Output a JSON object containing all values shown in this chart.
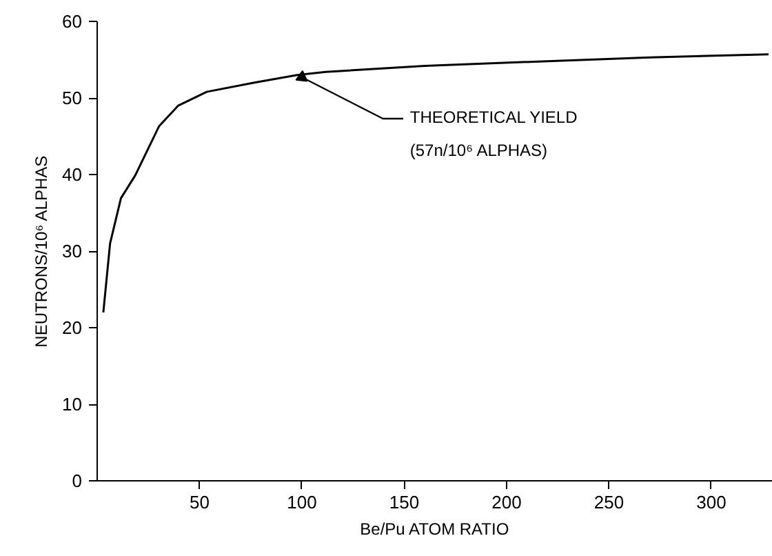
{
  "chart_data": {
    "type": "line",
    "xlabel": "Be/Pu ATOM RATIO",
    "ylabel": "NEUTRONS/10⁶ ALPHAS",
    "x": [
      3,
      6.3,
      11.6,
      18.6,
      30.2,
      39.6,
      53.5,
      76.8,
      97.7,
      111.6,
      160,
      220,
      270,
      328
    ],
    "series": [
      {
        "color": "#000000",
        "values": [
          22,
          31,
          36.9,
          39.9,
          46.3,
          49,
          50.8,
          52,
          53,
          53.4,
          54.2,
          54.8,
          55.3,
          55.7
        ]
      }
    ],
    "xlim": [
      0,
      330
    ],
    "ylim": [
      0,
      60
    ],
    "xticks": [
      50,
      100,
      150,
      200,
      250,
      300
    ],
    "yticks": [
      0,
      10,
      20,
      30,
      40,
      50,
      60
    ],
    "grid": false,
    "marker": "none",
    "line_style": "solid",
    "annotations": [
      {
        "text": "THEORETICAL YIELD\n(57n/10⁶ ALPHAS)",
        "x": 100,
        "y": 52.7
      }
    ]
  }
}
